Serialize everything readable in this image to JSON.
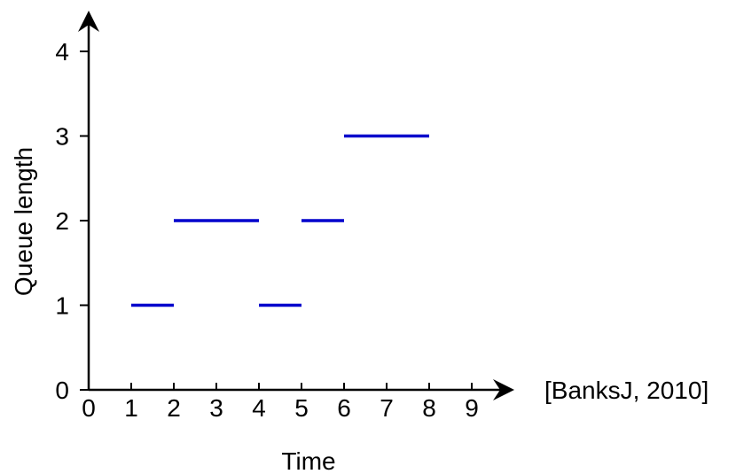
{
  "chart_data": {
    "type": "line",
    "title": "",
    "xlabel": "Time",
    "ylabel": "Queue length",
    "xlim": [
      0,
      9
    ],
    "ylim": [
      0,
      4
    ],
    "x_ticks": [
      0,
      1,
      2,
      3,
      4,
      5,
      6,
      7,
      8,
      9
    ],
    "y_ticks": [
      0,
      1,
      2,
      3,
      4
    ],
    "grid": false,
    "legend": "none",
    "series": [
      {
        "color": "#0000cc",
        "segments": [
          {
            "x_start": 1,
            "x_end": 2,
            "y": 1
          },
          {
            "x_start": 2,
            "x_end": 4,
            "y": 2
          },
          {
            "x_start": 4,
            "x_end": 5,
            "y": 1
          },
          {
            "x_start": 5,
            "x_end": 6,
            "y": 2
          },
          {
            "x_start": 6,
            "x_end": 8,
            "y": 3
          }
        ]
      }
    ],
    "annotation": "[BanksJ, 2010]"
  }
}
